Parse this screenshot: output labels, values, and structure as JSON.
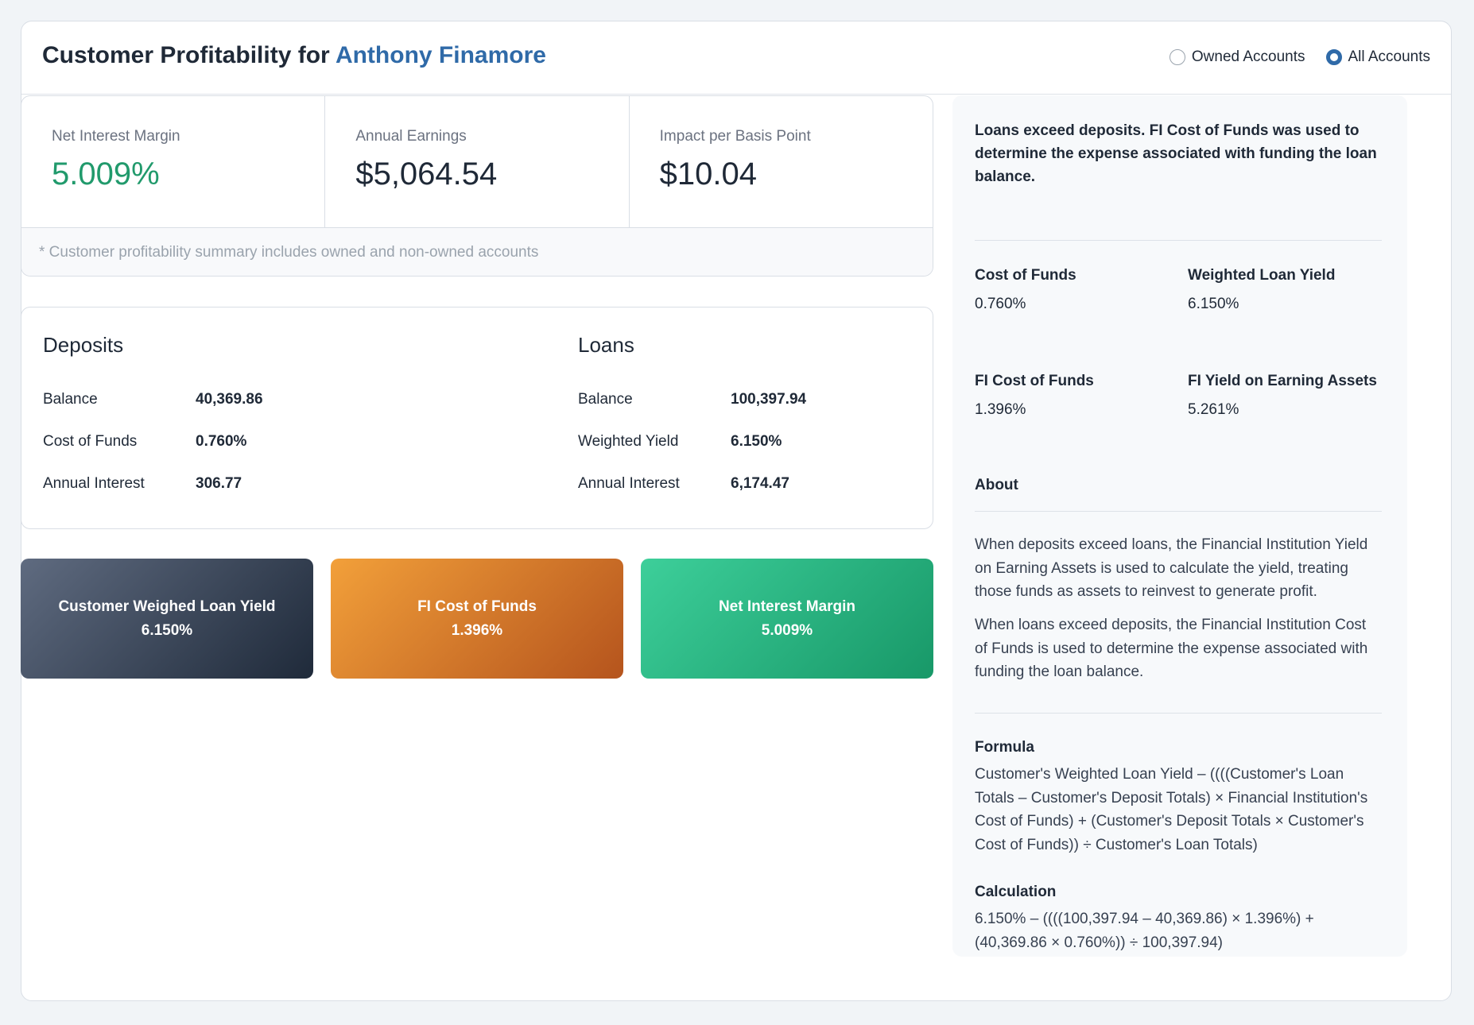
{
  "header": {
    "title_prefix": "Customer Profitability for",
    "customer_name": "Anthony Finamore",
    "radio_owned": "Owned Accounts",
    "radio_all": "All Accounts",
    "selected": "All Accounts"
  },
  "metrics": {
    "nim_label": "Net Interest Margin",
    "nim_value": "5.009%",
    "earnings_label": "Annual Earnings",
    "earnings_value": "$5,064.54",
    "impact_label": "Impact per Basis Point",
    "impact_value": "$10.04",
    "note": "* Customer profitability summary includes owned and non-owned accounts"
  },
  "deposits": {
    "title": "Deposits",
    "rows": [
      {
        "label": "Balance",
        "value": "40,369.86"
      },
      {
        "label": "Cost of Funds",
        "value": "0.760%"
      },
      {
        "label": "Annual Interest",
        "value": "306.77"
      }
    ]
  },
  "loans": {
    "title": "Loans",
    "rows": [
      {
        "label": "Balance",
        "value": "100,397.94"
      },
      {
        "label": "Weighted Yield",
        "value": "6.150%"
      },
      {
        "label": "Annual Interest",
        "value": "6,174.47"
      }
    ]
  },
  "tiles": [
    {
      "label": "Customer Weighed Loan Yield",
      "value": "6.150%",
      "color": "#1f2a3a"
    },
    {
      "label": "FI Cost of Funds",
      "value": "1.396%",
      "color": "#e08a2e"
    },
    {
      "label": "Net Interest Margin",
      "value": "5.009%",
      "color": "#22b07c"
    }
  ],
  "panel": {
    "intro": "Loans exceed deposits. FI Cost of Funds was used to determine the expense associated with funding the loan balance.",
    "stats": [
      {
        "label": "Cost of Funds",
        "value": "0.760%"
      },
      {
        "label": "Weighted Loan Yield",
        "value": "6.150%"
      },
      {
        "label": "FI Cost of Funds",
        "value": "1.396%"
      },
      {
        "label": "FI Yield on Earning Assets",
        "value": "5.261%"
      }
    ],
    "about_title": "About",
    "about_p1": "When deposits exceed loans, the Financial Institution Yield on Earning Assets is used to calculate the yield, treating those funds as assets to reinvest to generate profit.",
    "about_p2": "When loans exceed deposits, the Financial Institution Cost of Funds is used to determine the expense associated with funding the loan balance.",
    "formula_title": "Formula",
    "formula": "Customer's Weighted Loan Yield – ((((Customer's Loan Totals – Customer's Deposit Totals) × Financial Institution's Cost of Funds) + (Customer's Deposit Totals × Customer's Cost of Funds)) ÷ Customer's Loan Totals)",
    "calc_title": "Calculation",
    "calc": "6.150% – ((((100,397.94 – 40,369.86) × 1.396%) + (40,369.86 × 0.760%)) ÷ 100,397.94)"
  }
}
